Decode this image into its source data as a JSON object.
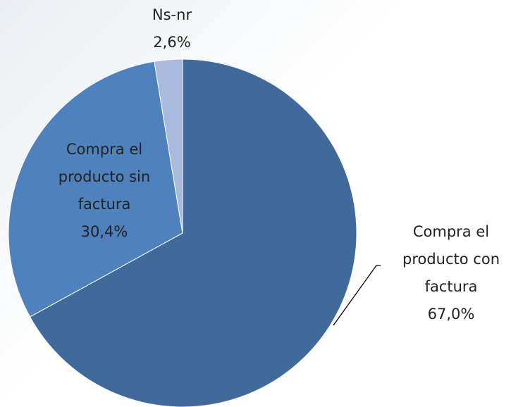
{
  "chart_data": {
    "type": "pie",
    "categories": [
      "Compra el producto con factura",
      "Compra el producto sin factura",
      "Ns-nr"
    ],
    "values": [
      67.0,
      30.4,
      2.6
    ],
    "value_labels": [
      "67,0%",
      "30,4%",
      "2,6%"
    ],
    "colors": [
      "#416a9c",
      "#4f81bd",
      "#a9bbdd"
    ]
  }
}
